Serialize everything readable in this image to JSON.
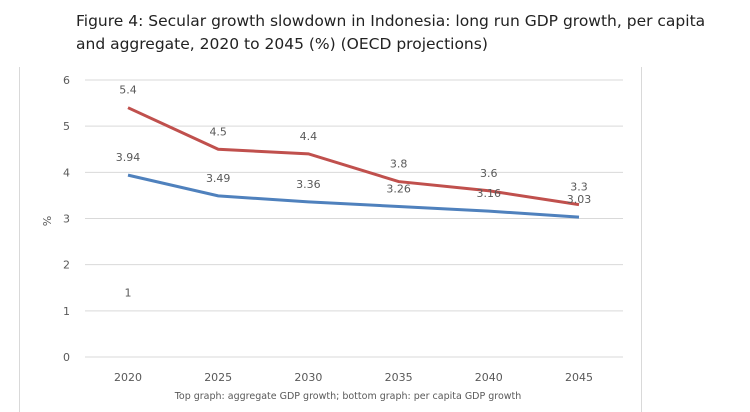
{
  "title": "Figure 4: Secular growth slowdown in Indonesia: long run GDP growth, per capita and aggregate, 2020 to 2045 (%) (OECD projections)",
  "chart_data": {
    "type": "line",
    "title": "Figure 4: Secular growth slowdown in Indonesia: long run GDP growth, per capita and aggregate, 2020 to 2045 (%) (OECD projections)",
    "xlabel": "Top graph: aggregate GDP growth; bottom graph: per capita GDP growth",
    "ylabel": "%",
    "categories": [
      "2020",
      "2025",
      "2030",
      "2035",
      "2040",
      "2045"
    ],
    "ylim": [
      0,
      6
    ],
    "yticks": [
      "0",
      "1",
      "2",
      "3",
      "4",
      "5",
      "6"
    ],
    "grid": true,
    "series": [
      {
        "name": "Aggregate GDP growth",
        "color": "#c0504d",
        "values": [
          5.4,
          4.5,
          4.4,
          3.8,
          3.6,
          3.3
        ],
        "labels": [
          "5.4",
          "4.5",
          "4.4",
          "3.8",
          "3.6",
          "3.3"
        ]
      },
      {
        "name": "Per capita GDP growth",
        "color": "#4f81bd",
        "values": [
          3.94,
          3.49,
          3.36,
          3.26,
          3.16,
          3.03
        ],
        "labels": [
          "3.94",
          "3.49",
          "3.36",
          "3.26",
          "3.16",
          "3.03"
        ]
      }
    ],
    "annotations": [
      {
        "text": "1",
        "x": "2020",
        "y": 1.4
      }
    ]
  }
}
